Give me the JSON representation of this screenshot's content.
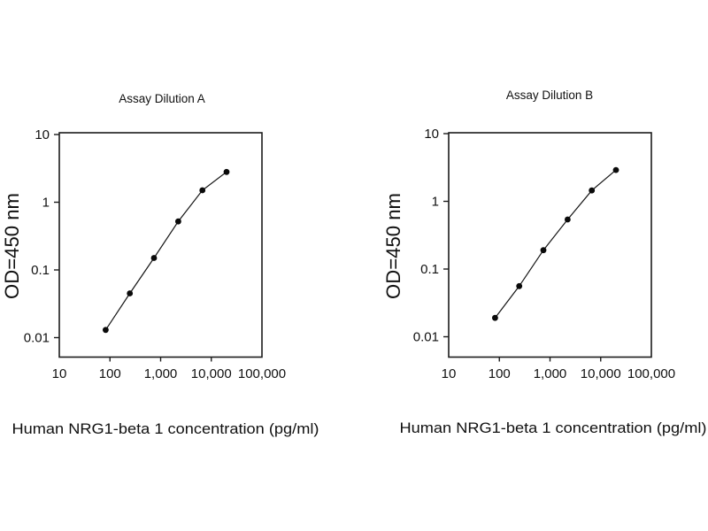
{
  "figure": {
    "background": "#ffffff",
    "text_color": "#101010"
  },
  "chart_data": [
    {
      "type": "line",
      "title": "Assay Dilution A",
      "xlabel": "Human NRG1-beta 1 concentration (pg/ml)",
      "ylabel": "OD=450 nm",
      "x_scale": "log",
      "y_scale": "log",
      "xlim": [
        10,
        100000
      ],
      "ylim": [
        0.005,
        10
      ],
      "grid": false,
      "legend": false,
      "x_tick_labels": [
        "10",
        "100",
        "1,000",
        "10,000",
        "100,000"
      ],
      "x_tick_values": [
        10,
        100,
        1000,
        10000,
        100000
      ],
      "y_tick_labels": [
        "10",
        "1",
        "0.1",
        "0.01"
      ],
      "y_tick_values": [
        10,
        1,
        0.1,
        0.01
      ],
      "x": [
        82.3,
        246.9,
        740.7,
        2222,
        6667,
        20000
      ],
      "y": [
        0.013,
        0.045,
        0.15,
        0.52,
        1.5,
        2.8
      ],
      "marker": "filled-circle",
      "line_color": "#141414",
      "marker_color": "#0a0a0a"
    },
    {
      "type": "line",
      "title": "Assay Dilution B",
      "xlabel": "Human NRG1-beta 1 concentration (pg/ml)",
      "ylabel": "OD=450 nm",
      "x_scale": "log",
      "y_scale": "log",
      "xlim": [
        10,
        100000
      ],
      "ylim": [
        0.005,
        10
      ],
      "grid": false,
      "legend": false,
      "x_tick_labels": [
        "10",
        "100",
        "1,000",
        "10,000",
        "100,000"
      ],
      "x_tick_values": [
        10,
        100,
        1000,
        10000,
        100000
      ],
      "y_tick_labels": [
        "10",
        "1",
        "0.1",
        "0.01"
      ],
      "y_tick_values": [
        10,
        1,
        0.1,
        0.01
      ],
      "x": [
        82.3,
        246.9,
        740.7,
        2222,
        6667,
        20000
      ],
      "y": [
        0.019,
        0.056,
        0.19,
        0.54,
        1.45,
        2.9
      ],
      "marker": "filled-circle",
      "line_color": "#141414",
      "marker_color": "#0a0a0a"
    }
  ]
}
